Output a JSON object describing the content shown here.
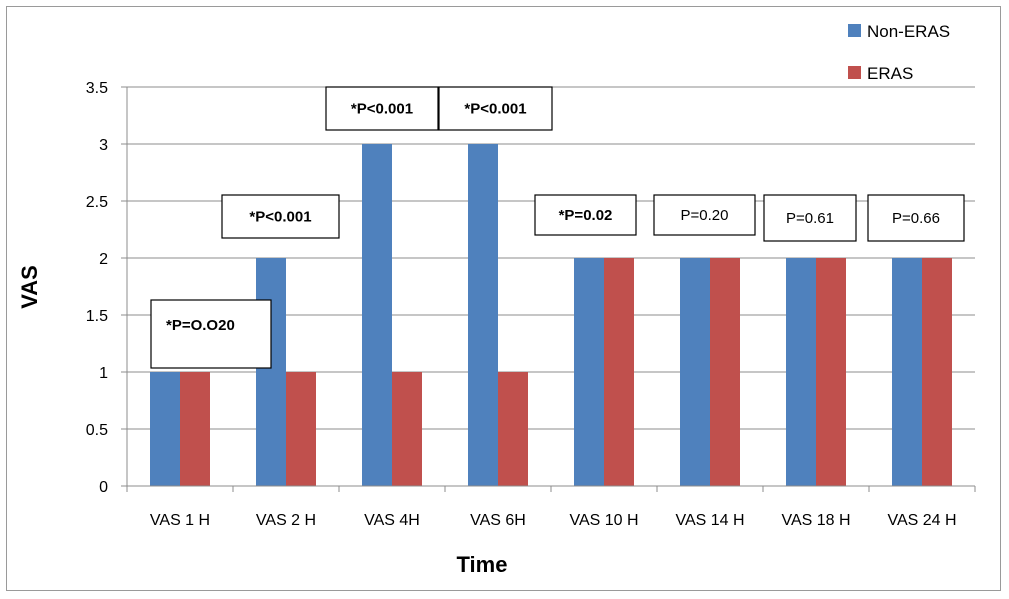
{
  "chart_data": {
    "type": "bar",
    "categories": [
      "VAS 1 H",
      "VAS 2 H",
      "VAS 4H",
      "VAS 6H",
      "VAS 10 H",
      "VAS 14 H",
      "VAS 18 H",
      "VAS 24 H"
    ],
    "series": [
      {
        "name": "Non-ERAS",
        "color": "#4f81bd",
        "values": [
          1,
          2,
          3,
          3,
          2,
          2,
          2,
          2
        ]
      },
      {
        "name": "ERAS",
        "color": "#c0504d",
        "values": [
          1,
          1,
          1,
          1,
          2,
          2,
          2,
          2
        ]
      }
    ],
    "xlabel": "Time",
    "ylabel": "VAS",
    "ylim": [
      0,
      3.5
    ],
    "yticks": [
      "0",
      "0.5",
      "1",
      "1.5",
      "2",
      "2.5",
      "3",
      "3.5"
    ],
    "grid": true,
    "legend_position": "top-right",
    "annotations": [
      {
        "category": 0,
        "text": "*P=O.O20",
        "bold": true
      },
      {
        "category": 1,
        "text": "*P<0.001",
        "bold": true
      },
      {
        "category": 2,
        "text": "*P<0.001",
        "bold": true
      },
      {
        "category": 3,
        "text": "*P<0.001",
        "bold": true
      },
      {
        "category": 4,
        "text": "*P=0.02",
        "bold": true
      },
      {
        "category": 5,
        "text": "P=0.20",
        "bold": false
      },
      {
        "category": 6,
        "text": "P=0.61",
        "bold": false
      },
      {
        "category": 7,
        "text": "P=0.66",
        "bold": false
      }
    ]
  }
}
